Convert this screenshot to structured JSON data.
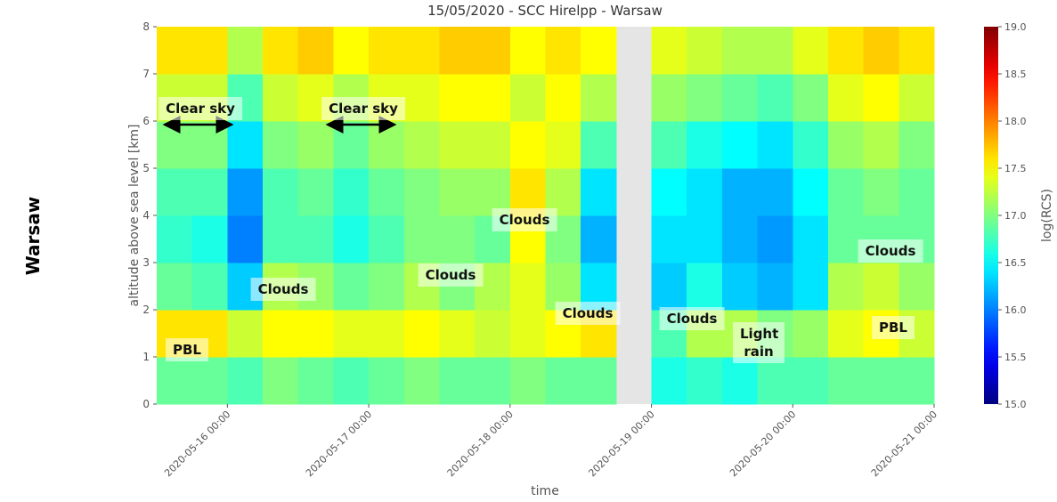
{
  "side_label": "Warsaw",
  "chart_data": {
    "type": "heatmap",
    "title": "15/05/2020 - SCC Hirelpp - Warsaw",
    "xlabel": "time",
    "ylabel": "altitude above sea level [km]",
    "colorbar_label": "log(RCS)",
    "colormap": "jet",
    "xlim": [
      "2020-05-15 12:00",
      "2020-05-21 00:00"
    ],
    "xticks": [
      "2020-05-16 00:00",
      "2020-05-17 00:00",
      "2020-05-18 00:00",
      "2020-05-19 00:00",
      "2020-05-20 00:00",
      "2020-05-21 00:00"
    ],
    "ylim": [
      0,
      8
    ],
    "yticks": [
      0,
      1,
      2,
      3,
      4,
      5,
      6,
      7,
      8
    ],
    "clim": [
      15,
      19
    ],
    "cticks": [
      {
        "value": 15,
        "label": "15.0"
      },
      {
        "value": 15.5,
        "label": "15.5"
      },
      {
        "value": 16,
        "label": "16.0"
      },
      {
        "value": 16.5,
        "label": "16.5"
      },
      {
        "value": 17,
        "label": "17.0"
      },
      {
        "value": 17.5,
        "label": "17.5"
      },
      {
        "value": 18,
        "label": "18.0"
      },
      {
        "value": 18.5,
        "label": "18.5"
      },
      {
        "value": 19,
        "label": "19.0"
      }
    ],
    "xbins": [
      "2020-05-15 12:00",
      "2020-05-15 18:00",
      "2020-05-16 00:00",
      "2020-05-16 06:00",
      "2020-05-16 12:00",
      "2020-05-16 18:00",
      "2020-05-17 00:00",
      "2020-05-17 06:00",
      "2020-05-17 12:00",
      "2020-05-17 18:00",
      "2020-05-18 00:00",
      "2020-05-18 06:00",
      "2020-05-18 12:00",
      "2020-05-18 18:00",
      "2020-05-19 00:00",
      "2020-05-19 06:00",
      "2020-05-19 12:00",
      "2020-05-19 18:00",
      "2020-05-20 00:00",
      "2020-05-20 06:00",
      "2020-05-20 12:00",
      "2020-05-20 18:00",
      "2020-05-21 00:00"
    ],
    "ybins": [
      0,
      1,
      2,
      3,
      4,
      5,
      6,
      7,
      8
    ],
    "values": [
      [
        16.9,
        16.9,
        16.8,
        17.0,
        16.9,
        16.8,
        16.9,
        17.0,
        16.9,
        16.9,
        17.0,
        16.9,
        16.9,
        null,
        16.6,
        16.7,
        16.6,
        16.8,
        16.8,
        16.9,
        16.9,
        16.9
      ],
      [
        17.6,
        17.6,
        17.3,
        17.5,
        17.5,
        17.4,
        17.4,
        17.5,
        17.4,
        17.3,
        17.4,
        17.5,
        17.6,
        null,
        16.8,
        17.2,
        17.2,
        17.0,
        17.1,
        17.4,
        17.5,
        17.3
      ],
      [
        16.9,
        16.8,
        16.3,
        17.2,
        17.1,
        16.9,
        17.0,
        17.2,
        17.0,
        17.2,
        17.4,
        17.1,
        16.4,
        null,
        16.3,
        16.6,
        16.3,
        16.2,
        16.4,
        17.2,
        17.3,
        17.1
      ],
      [
        16.7,
        16.6,
        16.0,
        16.8,
        16.8,
        16.6,
        16.8,
        17.0,
        17.0,
        16.9,
        17.5,
        17.0,
        16.2,
        null,
        16.4,
        16.4,
        16.2,
        16.1,
        16.4,
        16.9,
        16.9,
        16.9
      ],
      [
        16.8,
        16.8,
        16.1,
        16.8,
        16.9,
        16.7,
        16.9,
        17.0,
        17.1,
        17.1,
        17.6,
        17.2,
        16.4,
        null,
        16.5,
        16.4,
        16.2,
        16.2,
        16.5,
        16.9,
        17.0,
        16.9
      ],
      [
        17.0,
        17.0,
        16.4,
        17.0,
        17.1,
        16.9,
        17.1,
        17.2,
        17.3,
        17.3,
        17.5,
        17.4,
        16.8,
        null,
        16.8,
        16.6,
        16.5,
        16.4,
        16.7,
        17.1,
        17.2,
        17.0
      ],
      [
        17.3,
        17.3,
        16.8,
        17.3,
        17.4,
        17.2,
        17.4,
        17.4,
        17.5,
        17.5,
        17.3,
        17.5,
        17.2,
        null,
        17.1,
        17.0,
        16.9,
        16.8,
        17.0,
        17.4,
        17.5,
        17.3
      ],
      [
        17.6,
        17.6,
        17.2,
        17.6,
        17.7,
        17.5,
        17.6,
        17.6,
        17.7,
        17.7,
        17.5,
        17.6,
        17.5,
        null,
        17.4,
        17.3,
        17.2,
        17.2,
        17.4,
        17.6,
        17.7,
        17.6
      ]
    ],
    "annotations": [
      "Clear sky",
      "Clear sky",
      "Clouds",
      "Clouds",
      "Clouds",
      "Clouds",
      "Clouds",
      "Clouds",
      "PBL",
      "PBL",
      "Light rain"
    ]
  }
}
